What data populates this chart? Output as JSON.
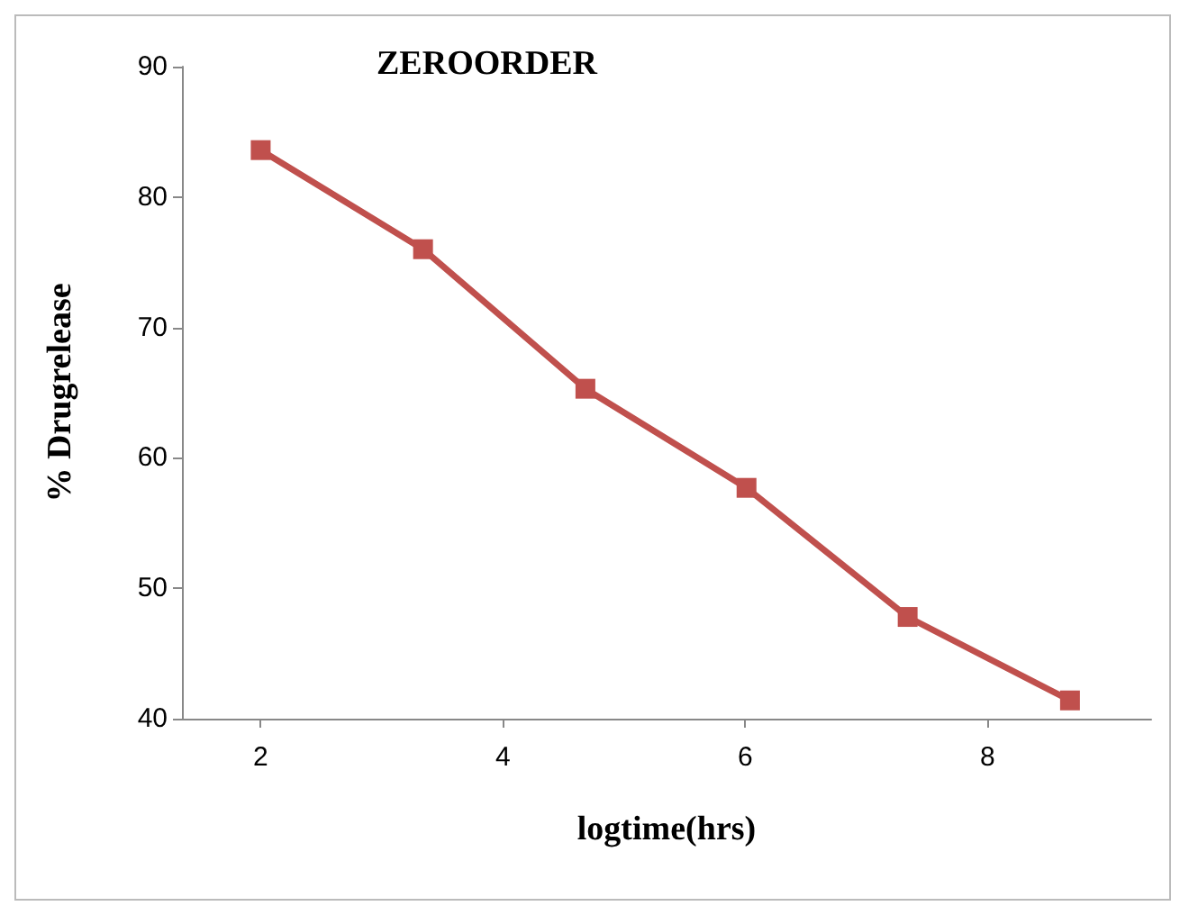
{
  "chart_data": {
    "type": "line",
    "title": "ZEROORDER",
    "xlabel": "logtime(hrs)",
    "ylabel": "% Drugrelease",
    "x": [
      2,
      3.34,
      4.68,
      6.01,
      7.34,
      8.68
    ],
    "series": [
      {
        "color": "#c0504d",
        "values": [
          83.6,
          76,
          65.3,
          57.7,
          47.8,
          41.4
        ]
      }
    ],
    "xlim": [
      1.35,
      9.35
    ],
    "xticks": [
      2,
      4,
      6,
      8
    ],
    "ylim": [
      40,
      90
    ],
    "yticks": [
      40,
      50,
      60,
      70,
      80,
      90
    ],
    "grid": false,
    "marker": "square",
    "line_style": "solid"
  }
}
